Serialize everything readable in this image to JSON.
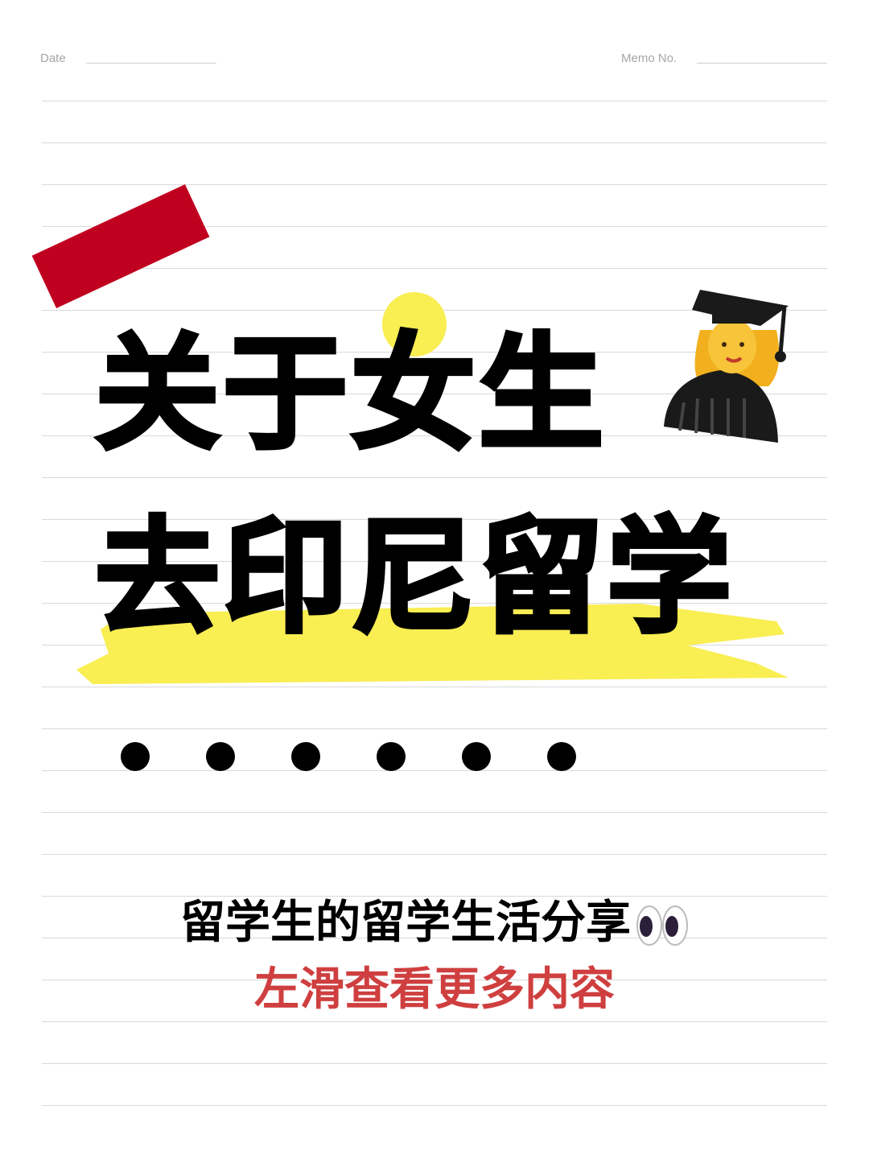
{
  "header": {
    "date_label": "Date",
    "memo_label": "Memo No."
  },
  "title": {
    "line1": "关于女生",
    "line2": "去印尼留学"
  },
  "subtitle": "留学生的留学生活分享",
  "cta": "左滑查看更多内容",
  "icons": {
    "graduate": "woman-graduate-icon",
    "eyes": "eyes-icon"
  },
  "colors": {
    "red_tape": "#c0001f",
    "yellow": "#f9ee52",
    "cta_red": "#cf3f3f",
    "rule_gray": "#d9d9d9"
  },
  "dots_count": 6
}
